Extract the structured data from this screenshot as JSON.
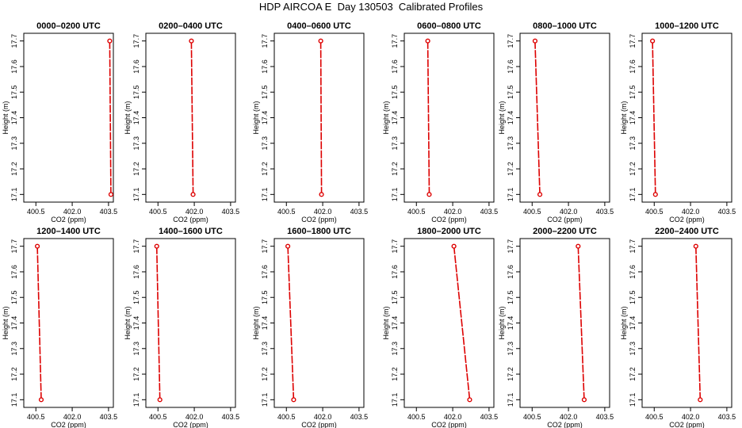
{
  "title": "HDP AIRCOA E  Day 130503  Calibrated Profiles",
  "axes": {
    "xlabel": "CO2 (ppm)",
    "ylabel": "Height (m)",
    "xticks": [
      "400.5",
      "402.0",
      "403.5"
    ],
    "yticks": [
      "17.1",
      "17.2",
      "17.3",
      "17.4",
      "17.5",
      "17.6",
      "17.7"
    ]
  },
  "chart_data": [
    {
      "type": "line",
      "title": "0000–0200 UTC",
      "xlim": [
        400.0,
        403.7
      ],
      "ylim": [
        17.07,
        17.73
      ],
      "x": [
        403.55,
        403.6
      ],
      "y": [
        17.7,
        17.1
      ],
      "line_color": "#dd0000",
      "marker_color": "#dd0000"
    },
    {
      "type": "line",
      "title": "0200–0400 UTC",
      "xlim": [
        400.0,
        403.7
      ],
      "ylim": [
        17.07,
        17.73
      ],
      "x": [
        401.88,
        401.95
      ],
      "y": [
        17.7,
        17.1
      ],
      "line_color": "#dd0000",
      "marker_color": "#dd0000"
    },
    {
      "type": "line",
      "title": "0400–0600 UTC",
      "xlim": [
        400.0,
        403.7
      ],
      "ylim": [
        17.07,
        17.73
      ],
      "x": [
        401.92,
        401.95
      ],
      "y": [
        17.7,
        17.1
      ],
      "line_color": "#dd0000",
      "marker_color": "#dd0000"
    },
    {
      "type": "line",
      "title": "0600–0800 UTC",
      "xlim": [
        400.0,
        403.7
      ],
      "ylim": [
        17.07,
        17.73
      ],
      "x": [
        400.97,
        401.03
      ],
      "y": [
        17.7,
        17.1
      ],
      "line_color": "#dd0000",
      "marker_color": "#dd0000"
    },
    {
      "type": "line",
      "title": "0800–1000 UTC",
      "xlim": [
        400.0,
        403.7
      ],
      "ylim": [
        17.07,
        17.73
      ],
      "x": [
        400.62,
        400.82
      ],
      "y": [
        17.7,
        17.1
      ],
      "line_color": "#dd0000",
      "marker_color": "#dd0000"
    },
    {
      "type": "line",
      "title": "1000–1200 UTC",
      "xlim": [
        400.0,
        403.7
      ],
      "ylim": [
        17.07,
        17.73
      ],
      "x": [
        400.43,
        400.55
      ],
      "y": [
        17.7,
        17.1
      ],
      "line_color": "#dd0000",
      "marker_color": "#dd0000"
    },
    {
      "type": "line",
      "title": "1200–1400 UTC",
      "xlim": [
        400.0,
        403.7
      ],
      "ylim": [
        17.07,
        17.73
      ],
      "x": [
        400.56,
        400.72
      ],
      "y": [
        17.7,
        17.1
      ],
      "line_color": "#dd0000",
      "marker_color": "#dd0000"
    },
    {
      "type": "line",
      "title": "1400–1600 UTC",
      "xlim": [
        400.0,
        403.7
      ],
      "ylim": [
        17.07,
        17.73
      ],
      "x": [
        400.45,
        400.58
      ],
      "y": [
        17.7,
        17.1
      ],
      "line_color": "#dd0000",
      "marker_color": "#dd0000"
    },
    {
      "type": "line",
      "title": "1600–1800 UTC",
      "xlim": [
        400.0,
        403.7
      ],
      "ylim": [
        17.07,
        17.73
      ],
      "x": [
        400.56,
        400.8
      ],
      "y": [
        17.7,
        17.1
      ],
      "line_color": "#dd0000",
      "marker_color": "#dd0000"
    },
    {
      "type": "line",
      "title": "1800–2000 UTC",
      "xlim": [
        400.0,
        403.7
      ],
      "ylim": [
        17.07,
        17.73
      ],
      "x": [
        402.05,
        402.7
      ],
      "y": [
        17.7,
        17.1
      ],
      "line_color": "#dd0000",
      "marker_color": "#dd0000"
    },
    {
      "type": "line",
      "title": "2000–2200 UTC",
      "xlim": [
        400.0,
        403.7
      ],
      "ylim": [
        17.07,
        17.73
      ],
      "x": [
        402.4,
        402.65
      ],
      "y": [
        17.7,
        17.1
      ],
      "line_color": "#dd0000",
      "marker_color": "#dd0000"
    },
    {
      "type": "line",
      "title": "2200–2400 UTC",
      "xlim": [
        400.0,
        403.7
      ],
      "ylim": [
        17.07,
        17.73
      ],
      "x": [
        402.22,
        402.4
      ],
      "y": [
        17.7,
        17.1
      ],
      "line_color": "#dd0000",
      "marker_color": "#dd0000"
    }
  ]
}
